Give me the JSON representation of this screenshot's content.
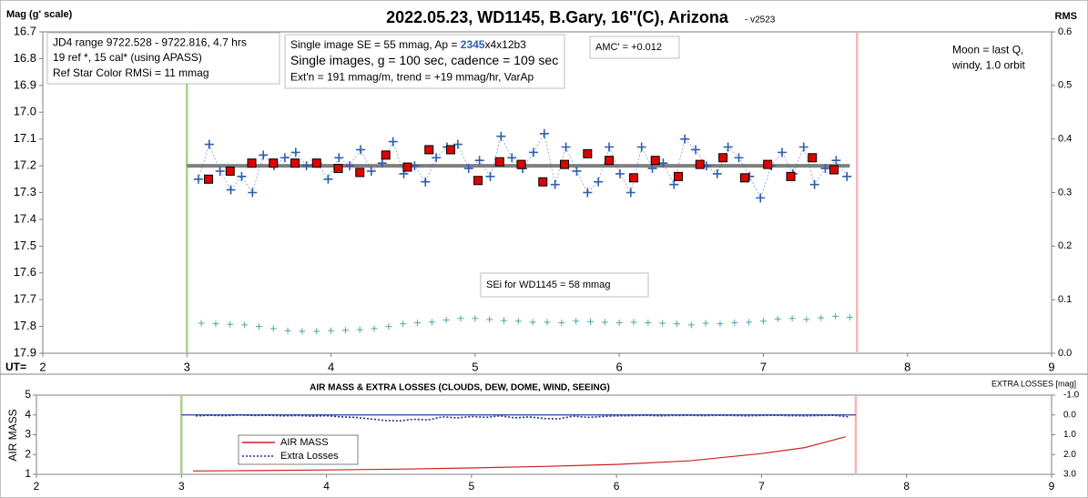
{
  "chart_data": [
    {
      "type": "scatter",
      "title": "2022.05.23, WD1145, B.Gary, 16''(C), Arizona",
      "subtitle": "- v2523",
      "y_label": "Mag (g' scale)",
      "y2_label": "RMS",
      "x_label": "UT=",
      "xlim": [
        2,
        9
      ],
      "xticks": [
        2,
        3,
        4,
        5,
        6,
        7,
        8,
        9
      ],
      "ylim": [
        16.7,
        17.9
      ],
      "y_inverted": true,
      "yticks": [
        16.7,
        16.8,
        16.9,
        {
          "value": 17,
          "label": "17.0"
        },
        17.1,
        17.2,
        17.3,
        17.4,
        17.5,
        17.6,
        17.7,
        17.8,
        17.9
      ],
      "y2lim": [
        0,
        0.6
      ],
      "y2ticks": [
        {
          "value": 0,
          "label": "0.0"
        },
        0.1,
        0.2,
        0.3,
        0.4,
        0.5,
        0.6
      ],
      "vlines": [
        {
          "x": 3.0,
          "color": "#a9d18e"
        },
        {
          "x": 7.65,
          "color": "#f4b6b6"
        }
      ],
      "hlines": [
        {
          "y": 17.2,
          "x": [
            3.0,
            7.6
          ],
          "color": "#7f7f7f"
        }
      ],
      "series": [
        {
          "color": "#2e5fad",
          "marker": "plus",
          "line": "dotted",
          "x": [
            3.08,
            3.155,
            3.23,
            3.305,
            3.38,
            3.455,
            3.53,
            3.605,
            3.68,
            3.755,
            3.83,
            3.905,
            3.98,
            4.055,
            4.13,
            4.205,
            4.28,
            4.355,
            4.43,
            4.505,
            4.58,
            4.655,
            4.73,
            4.805,
            4.88,
            4.955,
            5.03,
            5.105,
            5.18,
            5.255,
            5.33,
            5.405,
            5.48,
            5.555,
            5.63,
            5.705,
            5.78,
            5.855,
            5.93,
            6.005,
            6.08,
            6.155,
            6.23,
            6.305,
            6.38,
            6.455,
            6.53,
            6.605,
            6.68,
            6.755,
            6.83,
            6.905,
            6.98,
            7.055,
            7.13,
            7.205,
            7.28,
            7.355,
            7.43,
            7.505,
            7.58
          ],
          "values": [
            17.25,
            17.12,
            17.22,
            17.29,
            17.24,
            17.3,
            17.16,
            17.2,
            17.17,
            17.15,
            17.2,
            17.19,
            17.25,
            17.17,
            17.2,
            17.14,
            17.22,
            17.19,
            17.11,
            17.23,
            17.2,
            17.26,
            17.17,
            17.13,
            17.12,
            17.21,
            17.18,
            17.24,
            17.09,
            17.17,
            17.21,
            17.15,
            17.08,
            17.27,
            17.13,
            17.22,
            17.3,
            17.26,
            17.13,
            17.23,
            17.3,
            17.13,
            17.21,
            17.19,
            17.27,
            17.1,
            17.14,
            17.2,
            17.23,
            17.13,
            17.17,
            17.24,
            17.32,
            17.2,
            17.15,
            17.23,
            17.13,
            17.27,
            17.21,
            17.18,
            17.24
          ]
        },
        {
          "color": "#e00000",
          "marker": "square",
          "x": [
            3.15,
            3.3,
            3.45,
            3.6,
            3.75,
            3.9,
            4.05,
            4.2,
            4.38,
            4.53,
            4.68,
            4.83,
            5.02,
            5.17,
            5.32,
            5.47,
            5.62,
            5.78,
            5.93,
            6.1,
            6.25,
            6.41,
            6.56,
            6.72,
            6.87,
            7.03,
            7.19,
            7.34,
            7.49
          ],
          "values": [
            17.25,
            17.22,
            17.19,
            17.19,
            17.19,
            17.19,
            17.21,
            17.225,
            17.16,
            17.205,
            17.14,
            17.14,
            17.255,
            17.185,
            17.195,
            17.26,
            17.195,
            17.155,
            17.18,
            17.245,
            17.18,
            17.24,
            17.195,
            17.17,
            17.245,
            17.195,
            17.24,
            17.17,
            17.215
          ]
        },
        {
          "color": "#4fa6a6",
          "marker": "plus",
          "axis": "y2",
          "x": [
            3.1,
            3.2,
            3.3,
            3.4,
            3.5,
            3.6,
            3.7,
            3.8,
            3.9,
            4.0,
            4.1,
            4.2,
            4.3,
            4.4,
            4.5,
            4.6,
            4.7,
            4.8,
            4.9,
            5.0,
            5.1,
            5.2,
            5.3,
            5.4,
            5.5,
            5.6,
            5.7,
            5.8,
            5.9,
            6.0,
            6.1,
            6.2,
            6.3,
            6.4,
            6.5,
            6.6,
            6.7,
            6.8,
            6.9,
            7.0,
            7.1,
            7.2,
            7.3,
            7.4,
            7.5,
            7.6
          ],
          "values": [
            0.056,
            0.055,
            0.054,
            0.053,
            0.05,
            0.046,
            0.042,
            0.041,
            0.041,
            0.042,
            0.043,
            0.044,
            0.046,
            0.05,
            0.055,
            0.057,
            0.058,
            0.062,
            0.065,
            0.065,
            0.063,
            0.061,
            0.06,
            0.058,
            0.058,
            0.057,
            0.06,
            0.059,
            0.058,
            0.057,
            0.058,
            0.057,
            0.056,
            0.055,
            0.053,
            0.056,
            0.055,
            0.057,
            0.058,
            0.06,
            0.064,
            0.065,
            0.063,
            0.066,
            0.069,
            0.067
          ]
        }
      ],
      "annotations": [
        {
          "boxed": true,
          "lines": [
            "JD4 range 9722.528 - 9722.816, 4.7 hrs",
            "19 ref *, 15 cal* (using APASS)",
            "Ref Star Color RMSi = 11 mmag"
          ]
        },
        {
          "boxed": true,
          "lines": [
            [
              "Single image SE = 55 mmag, Ap = ",
              "2345",
              "x4x12b3"
            ],
            "Single images, g = 100 sec, cadence = 109 sec",
            "Ext'n = 191 mmag/m, trend = +19 mmag/hr, VarAp"
          ]
        },
        {
          "boxed": true,
          "lines": [
            "AMC' = +0.012"
          ]
        },
        {
          "boxed": false,
          "lines": [
            "Moon = last Q,",
            "windy,  1.0 orbit"
          ]
        },
        {
          "boxed": true,
          "lines": [
            "SEi for WD1145 = 58 mmag"
          ]
        }
      ]
    },
    {
      "type": "line",
      "title": "AIR MASS & EXTRA LOSSES (CLOUDS, DEW, DOME, WIND, SEEING)",
      "y_label": "AIR MASS",
      "y2_label": "EXTRA LOSSES [mag]",
      "xlim": [
        2,
        9
      ],
      "xticks": [
        2,
        3,
        4,
        5,
        6,
        7,
        8,
        9
      ],
      "ylim": [
        1,
        5
      ],
      "yticks": [
        1,
        2,
        3,
        4,
        5
      ],
      "y2lim": [
        -1,
        3
      ],
      "y2_inverted": true,
      "y2ticks": [
        {
          "value": -1,
          "label": "-1.0"
        },
        {
          "value": 0,
          "label": "0.0"
        },
        {
          "value": 1,
          "label": "1.0"
        },
        {
          "value": 2,
          "label": "2.0"
        },
        {
          "value": 3,
          "label": "3.0"
        }
      ],
      "vlines": [
        {
          "x": 3.0,
          "color": "#a9d18e"
        },
        {
          "x": 7.65,
          "color": "#f4b6b6"
        }
      ],
      "hlines": [
        {
          "y": 0,
          "axis": "y2",
          "x": [
            3.0,
            7.65
          ],
          "color": "#1f3f9f"
        }
      ],
      "legend": "lower left",
      "series": [
        {
          "name": "AIR MASS",
          "color": "#cc2222",
          "line": "solid",
          "x": [
            3.08,
            3.5,
            4.0,
            4.5,
            5.0,
            5.5,
            6.0,
            6.5,
            7.0,
            7.3,
            7.58
          ],
          "values": [
            1.17,
            1.19,
            1.22,
            1.26,
            1.32,
            1.4,
            1.5,
            1.68,
            2.05,
            2.35,
            2.9
          ]
        },
        {
          "name": "Extra Losses",
          "color": "#1f2f8f",
          "line": "dotted",
          "axis": "y2",
          "x": [
            3.1,
            3.2,
            3.3,
            3.4,
            3.5,
            3.6,
            3.7,
            3.8,
            3.9,
            4.0,
            4.1,
            4.2,
            4.3,
            4.4,
            4.5,
            4.6,
            4.7,
            4.8,
            4.9,
            5.0,
            5.1,
            5.2,
            5.3,
            5.4,
            5.5,
            5.6,
            5.7,
            5.8,
            5.9,
            6.0,
            6.1,
            6.2,
            6.3,
            6.4,
            6.5,
            6.6,
            6.7,
            6.8,
            6.9,
            7.0,
            7.1,
            7.2,
            7.3,
            7.4,
            7.5,
            7.6
          ],
          "values": [
            0.05,
            0.02,
            0.04,
            0.0,
            0.03,
            0.02,
            0.05,
            0.03,
            0.06,
            0.04,
            0.1,
            0.12,
            0.2,
            0.28,
            0.3,
            0.22,
            0.25,
            0.1,
            0.15,
            0.08,
            0.12,
            0.05,
            0.15,
            0.1,
            0.18,
            0.2,
            0.06,
            0.12,
            0.08,
            0.05,
            0.04,
            0.02,
            0.05,
            0.03,
            0.02,
            0.04,
            0.02,
            0.03,
            0.05,
            0.03,
            0.02,
            0.04,
            0.05,
            0.03,
            0.02,
            0.1
          ]
        }
      ]
    }
  ]
}
